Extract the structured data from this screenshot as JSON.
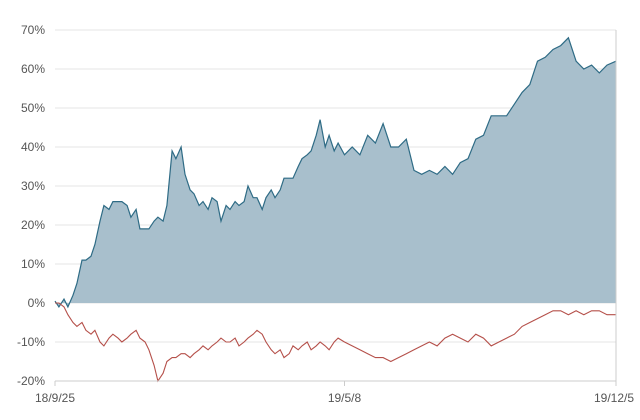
{
  "chart_data": {
    "type": "area",
    "title": "",
    "xlabel": "",
    "ylabel": "",
    "x_ticks": [
      "18/9/25",
      "19/5/8",
      "19/12/5"
    ],
    "y_ticks": [
      "70%",
      "60%",
      "50%",
      "40%",
      "30%",
      "20%",
      "10%",
      "0%",
      "-10%",
      "-20%"
    ],
    "ylim": [
      -20,
      70
    ],
    "xlim": [
      "2018-09-25",
      "2019-12-05"
    ],
    "grid": "horizontal",
    "legend": "none",
    "colors": {
      "area_fill": "#a8bfcc",
      "area_line": "#2e6b85",
      "line_red": "#b5504a",
      "axis": "#cccccc",
      "grid": "#e6e6e6"
    },
    "series": [
      {
        "style": "filled-area",
        "x": [
          "2018-09-25",
          "2018-09-28",
          "2018-10-02",
          "2018-10-05",
          "2018-10-09",
          "2018-10-12",
          "2018-10-16",
          "2018-10-19",
          "2018-10-23",
          "2018-10-26",
          "2018-10-30",
          "2018-11-02",
          "2018-11-06",
          "2018-11-09",
          "2018-11-13",
          "2018-11-16",
          "2018-11-20",
          "2018-11-23",
          "2018-11-27",
          "2018-11-30",
          "2018-12-04",
          "2018-12-07",
          "2018-12-11",
          "2018-12-14",
          "2018-12-18",
          "2018-12-21",
          "2018-12-25",
          "2018-12-28",
          "2019-01-01",
          "2019-01-04",
          "2019-01-08",
          "2019-01-11",
          "2019-01-15",
          "2019-01-18",
          "2019-01-22",
          "2019-01-25",
          "2019-01-29",
          "2019-02-01",
          "2019-02-05",
          "2019-02-08",
          "2019-02-12",
          "2019-02-15",
          "2019-02-19",
          "2019-02-22",
          "2019-02-26",
          "2019-03-01",
          "2019-03-05",
          "2019-03-08",
          "2019-03-12",
          "2019-03-15",
          "2019-03-19",
          "2019-03-22",
          "2019-03-26",
          "2019-03-29",
          "2019-04-02",
          "2019-04-05",
          "2019-04-09",
          "2019-04-12",
          "2019-04-16",
          "2019-04-19",
          "2019-04-23",
          "2019-04-26",
          "2019-04-30",
          "2019-05-03",
          "2019-05-08",
          "2019-05-14",
          "2019-05-20",
          "2019-05-26",
          "2019-06-01",
          "2019-06-07",
          "2019-06-13",
          "2019-06-19",
          "2019-06-25",
          "2019-07-01",
          "2019-07-07",
          "2019-07-13",
          "2019-07-19",
          "2019-07-25",
          "2019-07-31",
          "2019-08-06",
          "2019-08-12",
          "2019-08-18",
          "2019-08-24",
          "2019-08-30",
          "2019-09-05",
          "2019-09-11",
          "2019-09-17",
          "2019-09-23",
          "2019-09-29",
          "2019-10-05",
          "2019-10-11",
          "2019-10-17",
          "2019-10-23",
          "2019-10-29",
          "2019-11-04",
          "2019-11-10",
          "2019-11-16",
          "2019-11-22",
          "2019-11-28",
          "2019-12-05"
        ],
        "values": [
          0.5,
          -1,
          1,
          -1,
          2,
          5,
          11,
          11,
          12,
          15,
          21,
          25,
          24,
          26,
          26,
          26,
          25,
          22,
          24,
          19,
          19,
          19,
          21,
          22,
          21,
          25,
          39,
          37,
          40,
          33,
          29,
          28,
          25,
          26,
          24,
          27,
          26,
          21,
          25,
          24,
          26,
          25,
          26,
          30,
          27,
          27,
          24,
          27,
          29,
          27,
          29,
          32,
          32,
          32,
          35,
          37,
          38,
          39,
          43,
          47,
          40,
          43,
          39,
          41,
          38,
          40,
          38,
          43,
          41,
          46,
          40,
          40,
          42,
          34,
          33,
          34,
          33,
          35,
          33,
          36,
          37,
          42,
          43,
          48,
          48,
          48,
          51,
          54,
          56,
          62,
          63,
          65,
          66,
          68,
          62,
          60,
          61,
          59,
          61,
          62
        ]
      },
      {
        "style": "line",
        "x": [
          "2018-09-25",
          "2018-09-28",
          "2018-10-02",
          "2018-10-05",
          "2018-10-09",
          "2018-10-12",
          "2018-10-16",
          "2018-10-19",
          "2018-10-23",
          "2018-10-26",
          "2018-10-30",
          "2018-11-02",
          "2018-11-06",
          "2018-11-09",
          "2018-11-13",
          "2018-11-16",
          "2018-11-20",
          "2018-11-23",
          "2018-11-27",
          "2018-11-30",
          "2018-12-04",
          "2018-12-07",
          "2018-12-11",
          "2018-12-14",
          "2018-12-18",
          "2018-12-21",
          "2018-12-25",
          "2018-12-28",
          "2019-01-01",
          "2019-01-04",
          "2019-01-08",
          "2019-01-11",
          "2019-01-15",
          "2019-01-18",
          "2019-01-22",
          "2019-01-25",
          "2019-01-29",
          "2019-02-01",
          "2019-02-05",
          "2019-02-08",
          "2019-02-12",
          "2019-02-15",
          "2019-02-19",
          "2019-02-22",
          "2019-02-26",
          "2019-03-01",
          "2019-03-05",
          "2019-03-08",
          "2019-03-12",
          "2019-03-15",
          "2019-03-19",
          "2019-03-22",
          "2019-03-26",
          "2019-03-29",
          "2019-04-02",
          "2019-04-05",
          "2019-04-09",
          "2019-04-12",
          "2019-04-16",
          "2019-04-19",
          "2019-04-23",
          "2019-04-26",
          "2019-04-30",
          "2019-05-03",
          "2019-05-08",
          "2019-05-14",
          "2019-05-20",
          "2019-05-26",
          "2019-06-01",
          "2019-06-07",
          "2019-06-13",
          "2019-06-19",
          "2019-06-25",
          "2019-07-01",
          "2019-07-07",
          "2019-07-13",
          "2019-07-19",
          "2019-07-25",
          "2019-07-31",
          "2019-08-06",
          "2019-08-12",
          "2019-08-18",
          "2019-08-24",
          "2019-08-30",
          "2019-09-05",
          "2019-09-11",
          "2019-09-17",
          "2019-09-23",
          "2019-09-29",
          "2019-10-05",
          "2019-10-11",
          "2019-10-17",
          "2019-10-23",
          "2019-10-29",
          "2019-11-04",
          "2019-11-10",
          "2019-11-16",
          "2019-11-22",
          "2019-11-28",
          "2019-12-05"
        ],
        "values": [
          0,
          0,
          -1,
          -3,
          -5,
          -6,
          -5,
          -7,
          -8,
          -7,
          -10,
          -11,
          -9,
          -8,
          -9,
          -10,
          -9,
          -8,
          -7,
          -9,
          -10,
          -12,
          -16,
          -20,
          -18,
          -15,
          -14,
          -14,
          -13,
          -13,
          -14,
          -13,
          -12,
          -11,
          -12,
          -11,
          -10,
          -9,
          -10,
          -10,
          -9,
          -11,
          -10,
          -9,
          -8,
          -7,
          -8,
          -10,
          -12,
          -13,
          -12,
          -14,
          -13,
          -11,
          -12,
          -11,
          -10,
          -12,
          -11,
          -10,
          -11,
          -12,
          -10,
          -9,
          -10,
          -11,
          -12,
          -13,
          -14,
          -14,
          -15,
          -14,
          -13,
          -12,
          -11,
          -10,
          -11,
          -9,
          -8,
          -9,
          -10,
          -8,
          -9,
          -11,
          -10,
          -9,
          -8,
          -6,
          -5,
          -4,
          -3,
          -2,
          -2,
          -3,
          -2,
          -3,
          -2,
          -2,
          -3,
          -3
        ]
      }
    ]
  }
}
